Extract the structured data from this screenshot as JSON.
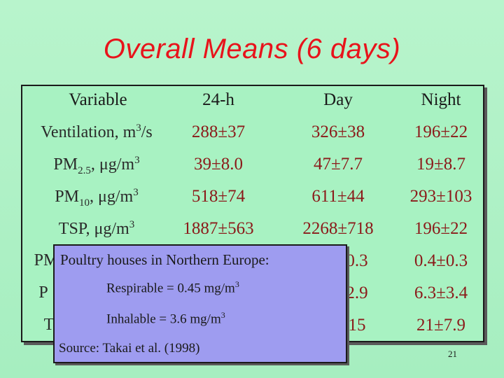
{
  "title": "Overall Means (6 days)",
  "table": {
    "headers": [
      "Variable",
      "24-h",
      "Day",
      "Night"
    ],
    "rows": [
      {
        "var_main": "Ventilation, m",
        "var_sup": "3",
        "var_tail": "/s",
        "values": [
          "288±37",
          "326±38",
          "196±22"
        ]
      },
      {
        "var_main": "PM",
        "var_sub": "2.5",
        "var_mid": ", μg/m",
        "var_sup": "3",
        "values": [
          "39±8.0",
          "47±7.7",
          "19±8.7"
        ]
      },
      {
        "var_main": "PM",
        "var_sub": "10",
        "var_mid": ", μg/m",
        "var_sup": "3",
        "values": [
          "518±74",
          "611±44",
          "293±103"
        ]
      },
      {
        "var_main": "TSP, μg/m",
        "var_sup": "3",
        "values": [
          "1887±563",
          "2268±718",
          "196±22"
        ]
      },
      {
        "var_partial": "PM",
        "values": [
          "",
          "0.3",
          "0.4±0.3"
        ]
      },
      {
        "var_partial": "P",
        "values": [
          "",
          "2.9",
          "6.3±3.4"
        ]
      },
      {
        "var_partial": "T",
        "values": [
          "",
          "15",
          "21±7.9"
        ]
      }
    ]
  },
  "popup": {
    "heading": "Poultry houses in Northern Europe:",
    "respirable": "Respirable = 0.45 mg/m",
    "respirable_sup": "3",
    "inhalable": "Inhalable = 3.6 mg/m",
    "inhalable_sup": "3",
    "source": "Source: Takai et al. (1998)"
  },
  "page_number": "21"
}
